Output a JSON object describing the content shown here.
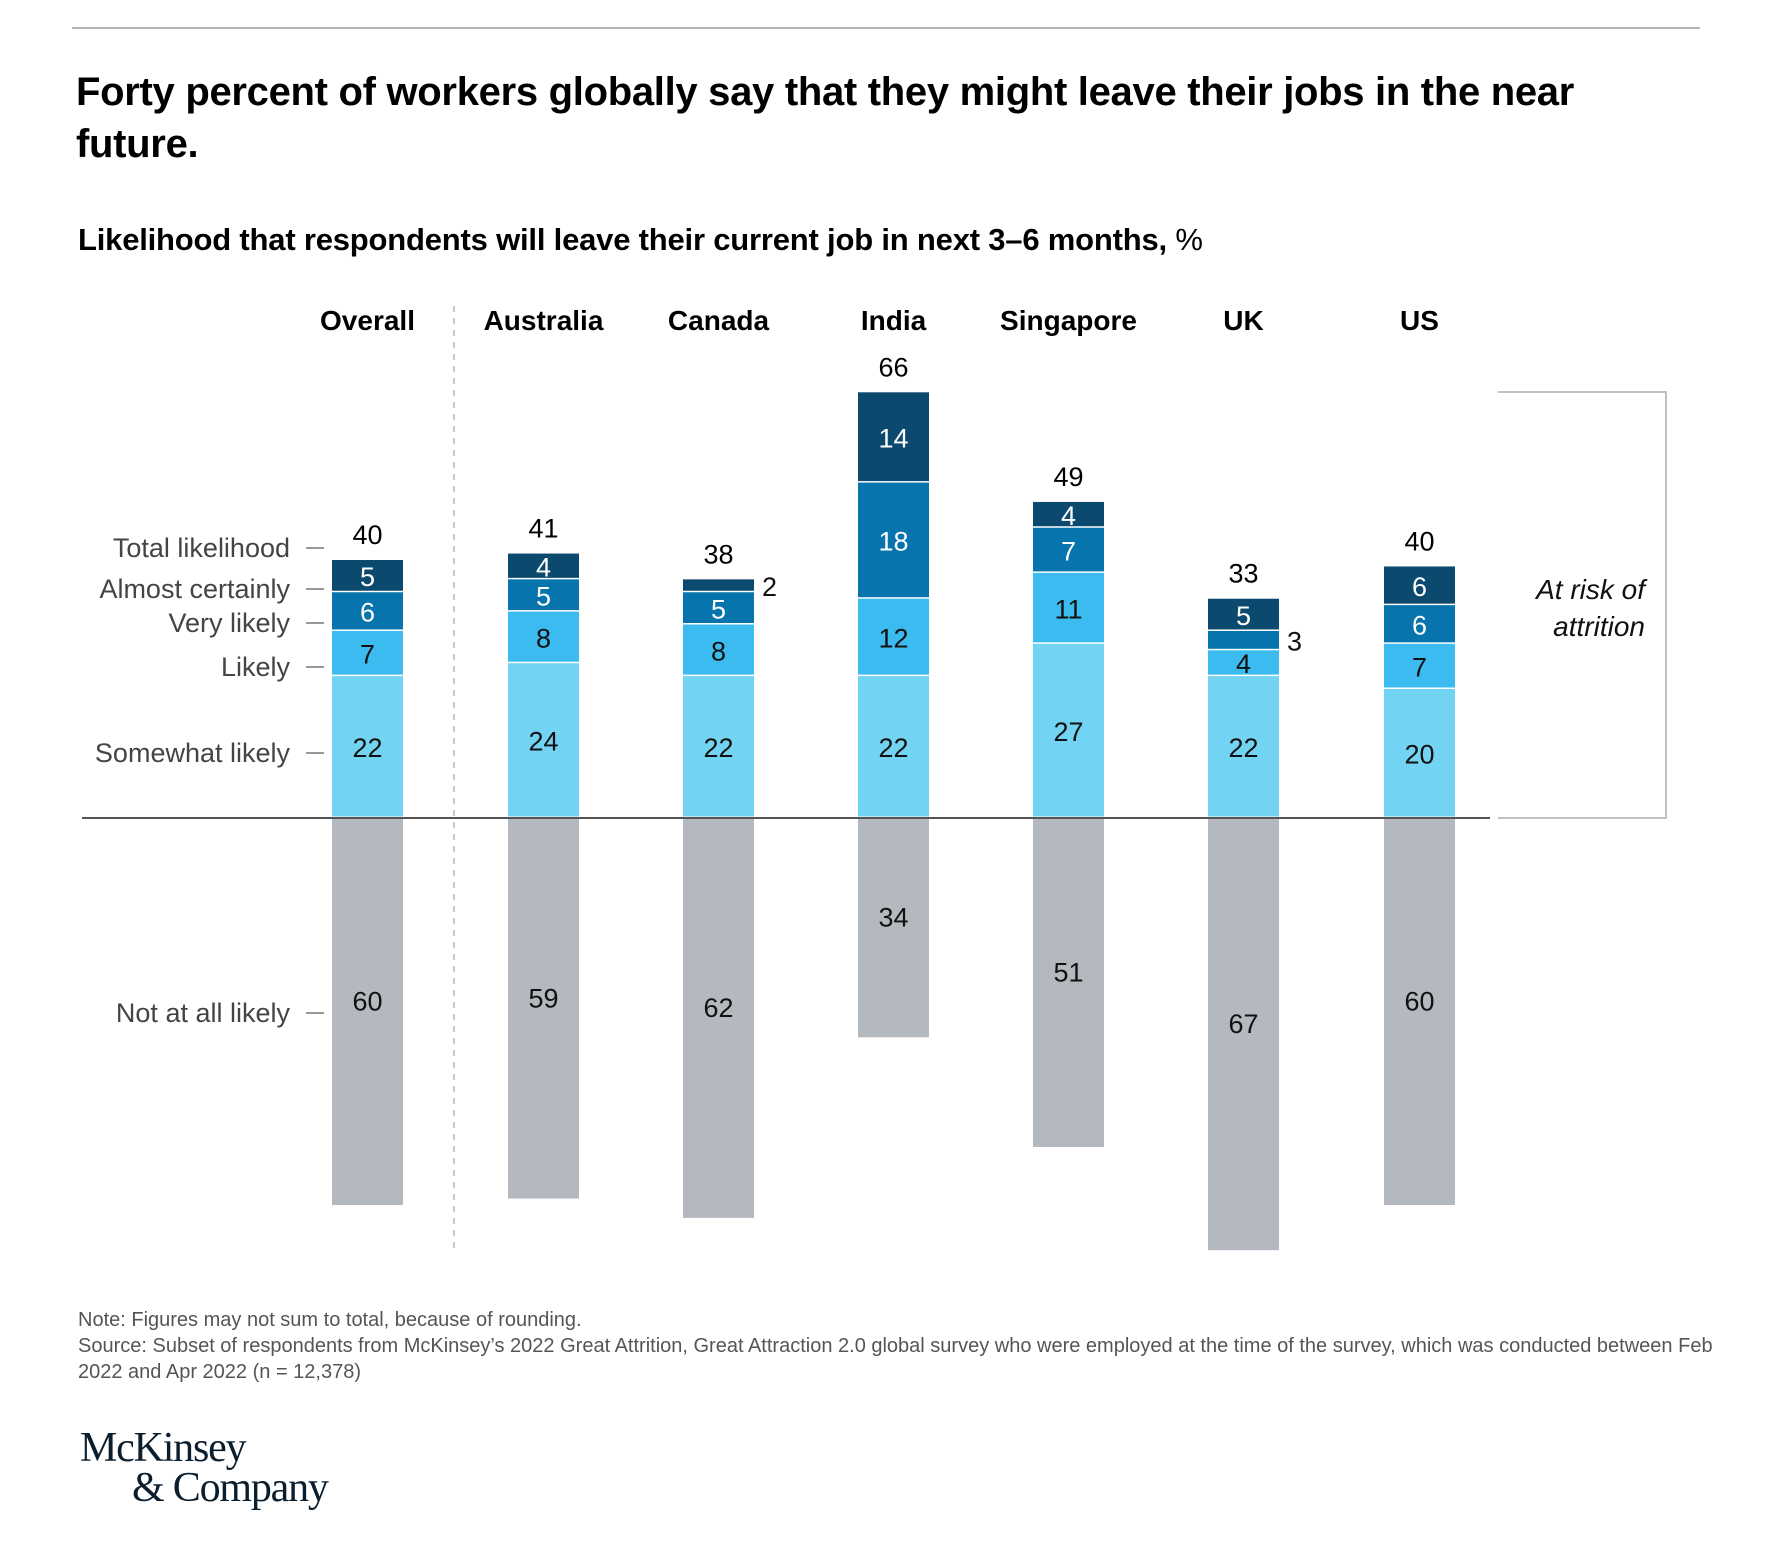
{
  "header": {
    "title": "Forty percent of workers globally say that they might leave their jobs in the near future.",
    "subtitle": "Likelihood that respondents will leave their current job in next 3–6 months,",
    "subtitle_unit": "%"
  },
  "colors": {
    "almost_certainly": "#0b4a6e",
    "very_likely": "#0774ad",
    "likely": "#3bbbf0",
    "somewhat_likely": "#72d3f3",
    "not_at_all_likely": "#b4b9bf",
    "divider": "#c8c8c8",
    "baseline": "#555555"
  },
  "chart_data": {
    "type": "bar",
    "subtype": "diverging-stacked",
    "title": "Likelihood that respondents will leave their current job in next 3–6 months, %",
    "categories": [
      "Overall",
      "Australia",
      "Canada",
      "India",
      "Singapore",
      "UK",
      "US"
    ],
    "series": [
      {
        "name": "Somewhat likely",
        "values": [
          22,
          24,
          22,
          22,
          27,
          22,
          20
        ]
      },
      {
        "name": "Likely",
        "values": [
          7,
          8,
          8,
          12,
          11,
          4,
          7
        ]
      },
      {
        "name": "Very likely",
        "values": [
          6,
          5,
          5,
          18,
          7,
          3,
          6
        ]
      },
      {
        "name": "Almost certainly",
        "values": [
          5,
          4,
          2,
          14,
          4,
          5,
          6
        ]
      },
      {
        "name": "Not at all likely",
        "values": [
          60,
          59,
          62,
          34,
          51,
          67,
          60
        ],
        "direction": "below"
      }
    ],
    "totals_label": "Total likelihood",
    "totals": [
      40,
      41,
      38,
      66,
      49,
      33,
      40
    ],
    "outside_labels": [
      {
        "category": "Canada",
        "series": "Almost certainly"
      },
      {
        "category": "UK",
        "series": "Very likely"
      }
    ],
    "legend": "left-side row labels",
    "bracket_label": "At risk of attrition",
    "xlabel": "",
    "ylabel": ""
  },
  "row_labels": {
    "total": "Total likelihood",
    "almost_certainly": "Almost certainly",
    "very_likely": "Very likely",
    "likely": "Likely",
    "somewhat_likely": "Somewhat likely",
    "not_at_all_likely": "Not at all likely"
  },
  "bracket": {
    "line1": "At risk of",
    "line2": "attrition"
  },
  "footer": {
    "note": "Note: Figures may not sum to total, because of rounding.",
    "source": "Source: Subset of respondents from McKinsey’s 2022 Great Attrition, Great Attraction 2.0 global survey who were employed at the time of the survey, which was conducted between Feb 2022 and Apr 2022 (n = 12,378)"
  },
  "logo": {
    "line1": "McKinsey",
    "line2": "& Company"
  }
}
